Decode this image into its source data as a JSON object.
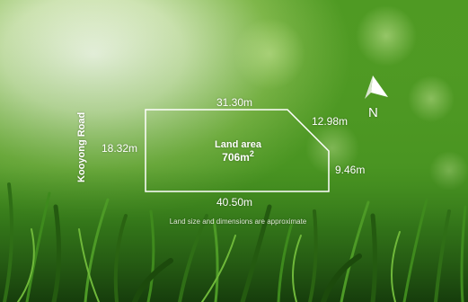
{
  "site_plan": {
    "road_name": "Kooyong Road",
    "land_area_label": "Land area",
    "land_area_value": "706m",
    "land_area_unit_power": "2",
    "dimensions": {
      "top": "31.30m",
      "top_right_diagonal": "12.98m",
      "right": "9.46m",
      "bottom": "40.50m",
      "left": "18.32m"
    },
    "disclaimer": "Land size and dimensions are approximate",
    "north_label": "N"
  },
  "colors": {
    "outline": "#ffffff",
    "text": "#ffffff",
    "grass_dark": "#1f4a12",
    "grass_mid": "#4f9a23",
    "grass_light": "#a9d86a",
    "bokeh_light": "#eef6e4"
  },
  "icons": {
    "north_arrow": "north-arrow-icon"
  }
}
